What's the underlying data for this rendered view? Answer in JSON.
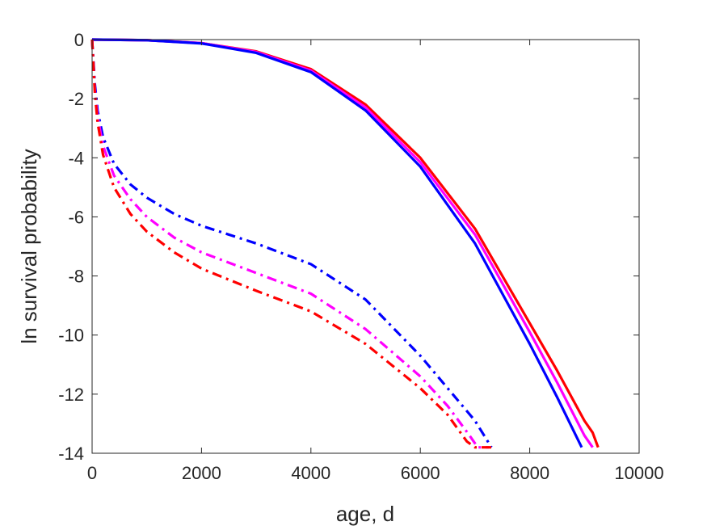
{
  "chart_data": {
    "type": "line",
    "title": "",
    "xlabel": "age, d",
    "ylabel": "ln survival probability",
    "xlim": [
      0,
      10000
    ],
    "ylim": [
      -14,
      0
    ],
    "xticks": [
      0,
      2000,
      4000,
      6000,
      8000,
      10000
    ],
    "yticks": [
      0,
      -2,
      -4,
      -6,
      -8,
      -10,
      -12,
      -14
    ],
    "xtick_labels": [
      "0",
      "2000",
      "4000",
      "6000",
      "8000",
      "10000"
    ],
    "ytick_labels": [
      "0",
      "-2",
      "-4",
      "-6",
      "-8",
      "-10",
      "-12",
      "-14"
    ],
    "grid": false,
    "legend": "none",
    "series": [
      {
        "color": "#ff0000",
        "style": "solid",
        "x": [
          0,
          1000,
          2000,
          3000,
          4000,
          5000,
          6000,
          7000,
          8000,
          8500,
          9000,
          9150,
          9250
        ],
        "y": [
          0,
          -0.02,
          -0.12,
          -0.4,
          -1.0,
          -2.2,
          -4.0,
          -6.4,
          -9.6,
          -11.2,
          -12.9,
          -13.3,
          -13.8
        ]
      },
      {
        "color": "#ff00ff",
        "style": "solid",
        "x": [
          0,
          1000,
          2000,
          3000,
          4000,
          5000,
          6000,
          7000,
          8000,
          8500,
          9000,
          9150
        ],
        "y": [
          0,
          -0.02,
          -0.12,
          -0.42,
          -1.05,
          -2.3,
          -4.15,
          -6.6,
          -9.9,
          -11.6,
          -13.4,
          -13.8
        ]
      },
      {
        "color": "#0000ff",
        "style": "solid",
        "x": [
          0,
          1000,
          2000,
          3000,
          4000,
          5000,
          6000,
          7000,
          8000,
          8500,
          8950
        ],
        "y": [
          0,
          -0.02,
          -0.13,
          -0.45,
          -1.1,
          -2.4,
          -4.3,
          -6.9,
          -10.3,
          -12.1,
          -13.8
        ]
      },
      {
        "color": "#0000ff",
        "style": "dashdot",
        "x": [
          0,
          50,
          100,
          200,
          400,
          700,
          1000,
          1500,
          2000,
          3000,
          4000,
          5000,
          6000,
          6500,
          7000,
          7300
        ],
        "y": [
          0,
          -1.5,
          -2.4,
          -3.3,
          -4.2,
          -4.9,
          -5.35,
          -5.9,
          -6.3,
          -6.9,
          -7.6,
          -8.8,
          -10.7,
          -11.8,
          -12.9,
          -13.8
        ]
      },
      {
        "color": "#ff00ff",
        "style": "dashdot",
        "x": [
          0,
          50,
          100,
          200,
          400,
          700,
          1000,
          1500,
          2000,
          3000,
          4000,
          5000,
          6000,
          6500,
          6900,
          7050,
          7250
        ],
        "y": [
          0,
          -1.7,
          -2.6,
          -3.6,
          -4.6,
          -5.4,
          -6.0,
          -6.7,
          -7.2,
          -7.9,
          -8.6,
          -9.8,
          -11.4,
          -12.4,
          -13.4,
          -13.8,
          -13.8
        ]
      },
      {
        "color": "#ff0000",
        "style": "dashdot",
        "x": [
          0,
          50,
          100,
          200,
          400,
          700,
          1000,
          1500,
          2000,
          3000,
          4000,
          5000,
          6000,
          6500,
          6850,
          7000,
          7300
        ],
        "y": [
          0,
          -1.8,
          -2.8,
          -3.9,
          -5.0,
          -5.9,
          -6.5,
          -7.2,
          -7.75,
          -8.5,
          -9.2,
          -10.3,
          -11.8,
          -12.7,
          -13.6,
          -13.8,
          -13.8
        ]
      }
    ]
  }
}
